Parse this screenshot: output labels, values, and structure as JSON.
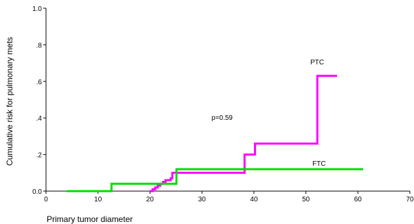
{
  "chart_data": {
    "type": "line",
    "xlabel": "Primary tumor diameter",
    "ylabel": "Cumulative risk for pulmonary mets",
    "xlim": [
      0,
      70
    ],
    "ylim": [
      0,
      1.0
    ],
    "x_ticks": [
      0,
      10,
      20,
      30,
      40,
      50,
      60,
      70
    ],
    "x_tick_labels": [
      "0",
      "10",
      "20",
      "30",
      "40",
      "50",
      "60",
      "70"
    ],
    "y_ticks": [
      0,
      0.2,
      0.4,
      0.6,
      0.8,
      1.0
    ],
    "y_tick_labels": [
      "0.0",
      ".2",
      ".4",
      ".6",
      ".8",
      "1.0"
    ],
    "grid": false,
    "annotation": "p=0.59",
    "series": [
      {
        "name": "PTC",
        "color": "#ff00ff",
        "step": true,
        "points": [
          [
            20.0,
            0.0
          ],
          [
            20.5,
            0.01
          ],
          [
            21.0,
            0.02
          ],
          [
            21.5,
            0.03
          ],
          [
            22.0,
            0.04
          ],
          [
            22.5,
            0.05
          ],
          [
            23.0,
            0.06
          ],
          [
            24.0,
            0.07
          ],
          [
            24.3,
            0.1
          ],
          [
            38.0,
            0.1
          ],
          [
            38.2,
            0.2
          ],
          [
            40.0,
            0.2
          ],
          [
            40.2,
            0.26
          ],
          [
            52.0,
            0.26
          ],
          [
            52.2,
            0.63
          ],
          [
            56.0,
            0.63
          ]
        ]
      },
      {
        "name": "FTC",
        "color": "#00dd00",
        "step": true,
        "points": [
          [
            4.0,
            0.0
          ],
          [
            12.5,
            0.0
          ],
          [
            12.6,
            0.04
          ],
          [
            25.0,
            0.04
          ],
          [
            25.1,
            0.12
          ],
          [
            61.0,
            0.12
          ]
        ]
      }
    ]
  }
}
